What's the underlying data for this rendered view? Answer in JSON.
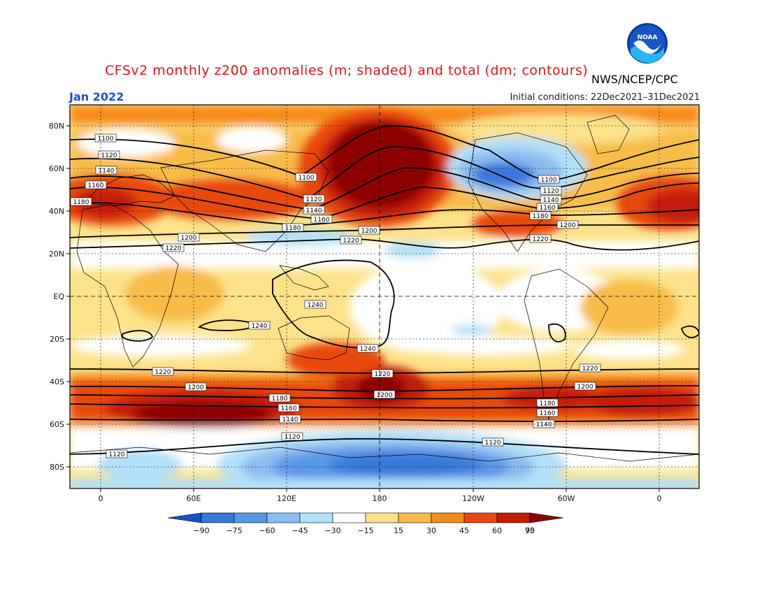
{
  "title": "CFSv2 monthly z200 anomalies (m; shaded) and total (dm; contours)",
  "agency": "NWS/NCEP/CPC",
  "month": "Jan 2022",
  "initial_conditions": "Initial conditions: 22Dec2021–31Dec2021",
  "logo": {
    "text": "NOAA",
    "icon": "noaa-logo-icon"
  },
  "axes": {
    "lat_ticks": [
      "80N",
      "60N",
      "40N",
      "20N",
      "EQ",
      "20S",
      "40S",
      "60S",
      "80S"
    ],
    "lon_ticks": [
      "0",
      "60E",
      "120E",
      "180",
      "120W",
      "60W",
      "0"
    ]
  },
  "colorbar": {
    "labels": [
      "−90",
      "−75",
      "−60",
      "−45",
      "−30",
      "−15",
      "15",
      "30",
      "45",
      "60",
      "75",
      "90"
    ],
    "colors": [
      "#1a50c8",
      "#3a78dc",
      "#5a96e6",
      "#8cbcf0",
      "#b4e0f8",
      "#ffffff",
      "#fce28a",
      "#f8bc48",
      "#f48c1c",
      "#e84810",
      "#c41a08",
      "#8c0404"
    ]
  },
  "contours": [
    {
      "label": "1100"
    },
    {
      "label": "1120"
    },
    {
      "label": "1140"
    },
    {
      "label": "1160"
    },
    {
      "label": "1180"
    },
    {
      "label": "1200"
    },
    {
      "label": "1220"
    },
    {
      "label": "1240"
    }
  ]
}
